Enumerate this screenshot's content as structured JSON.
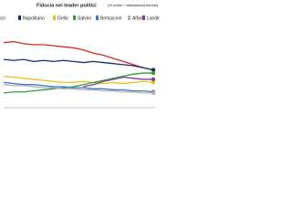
{
  "chart_data": {
    "type": "line",
    "title": "Fiducia nei leader politici",
    "subtitle": "(% molta + abbastanza fiducia)",
    "categories": [
      null,
      null,
      null,
      null,
      null,
      null,
      null,
      null,
      null,
      null,
      null,
      null,
      null,
      null,
      null,
      null
    ],
    "ylim": [
      0,
      80
    ],
    "series": [
      {
        "name": "Renzi",
        "color": "#d62a1e",
        "values": [
          62,
          63,
          61,
          60,
          60,
          59,
          58,
          57,
          55,
          52,
          50,
          47,
          44,
          41,
          38,
          36
        ]
      },
      {
        "name": "Napolitano",
        "color": "#1a2d6b",
        "values": [
          46,
          45,
          46,
          44,
          45,
          44,
          45,
          44,
          43,
          44,
          43,
          42,
          41,
          40,
          38,
          36
        ]
      },
      {
        "name": "Grillo",
        "color": "#e8c21a",
        "values": [
          30,
          29,
          28,
          27,
          26,
          25,
          24,
          24,
          25,
          24,
          23,
          24,
          23,
          24,
          25,
          24
        ]
      },
      {
        "name": "Salvini",
        "color": "#2f9e3a",
        "values": [
          14,
          15,
          15,
          16,
          17,
          18,
          19,
          20,
          22,
          24,
          26,
          28,
          30,
          32,
          33,
          33
        ]
      },
      {
        "name": "Berlusconi",
        "color": "#3a79c9",
        "values": [
          24,
          23,
          22,
          22,
          21,
          20,
          20,
          19,
          19,
          18,
          18,
          17,
          17,
          16,
          16,
          15
        ]
      },
      {
        "name": "Alfano",
        "color": "#b0b0b0",
        "values": [
          22,
          21,
          21,
          20,
          19,
          19,
          18,
          18,
          17,
          17,
          16,
          16,
          15,
          15,
          14,
          14
        ]
      },
      {
        "name": "Landini",
        "color": "#7a3e9d",
        "values": [
          null,
          null,
          null,
          null,
          null,
          null,
          null,
          null,
          20,
          22,
          25,
          27,
          29,
          28,
          27,
          27
        ]
      }
    ]
  }
}
